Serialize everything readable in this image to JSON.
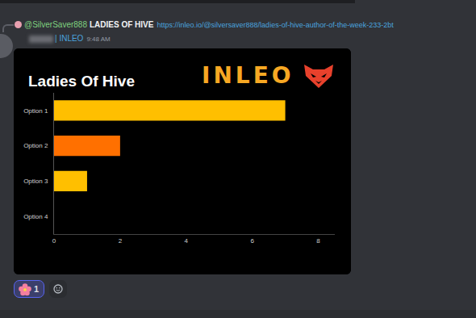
{
  "message": {
    "reply_author": "@SilverSaver888",
    "reply_title": "LADIES OF HIVE",
    "reply_link": "https://inleo.io/@silversaver888/ladies-of-hive-author-of-the-week-233-2bt",
    "author_tag": "| INLEO",
    "time": "9:48 AM",
    "embed_logo": "INLEO",
    "reaction_count": 1
  },
  "chart_data": {
    "type": "bar",
    "orientation": "horizontal",
    "title": "Ladies Of Hive",
    "categories": [
      "Option 1",
      "Option 2",
      "Option 3",
      "Option 4"
    ],
    "values": [
      7,
      2,
      1,
      0
    ],
    "colors": [
      "#ffbf00",
      "#ff7000",
      "#ffbf00",
      "#ffbf00"
    ],
    "xlim": [
      0,
      8.5
    ],
    "xticks": [
      0,
      2,
      4,
      6,
      8
    ],
    "grid": false
  }
}
